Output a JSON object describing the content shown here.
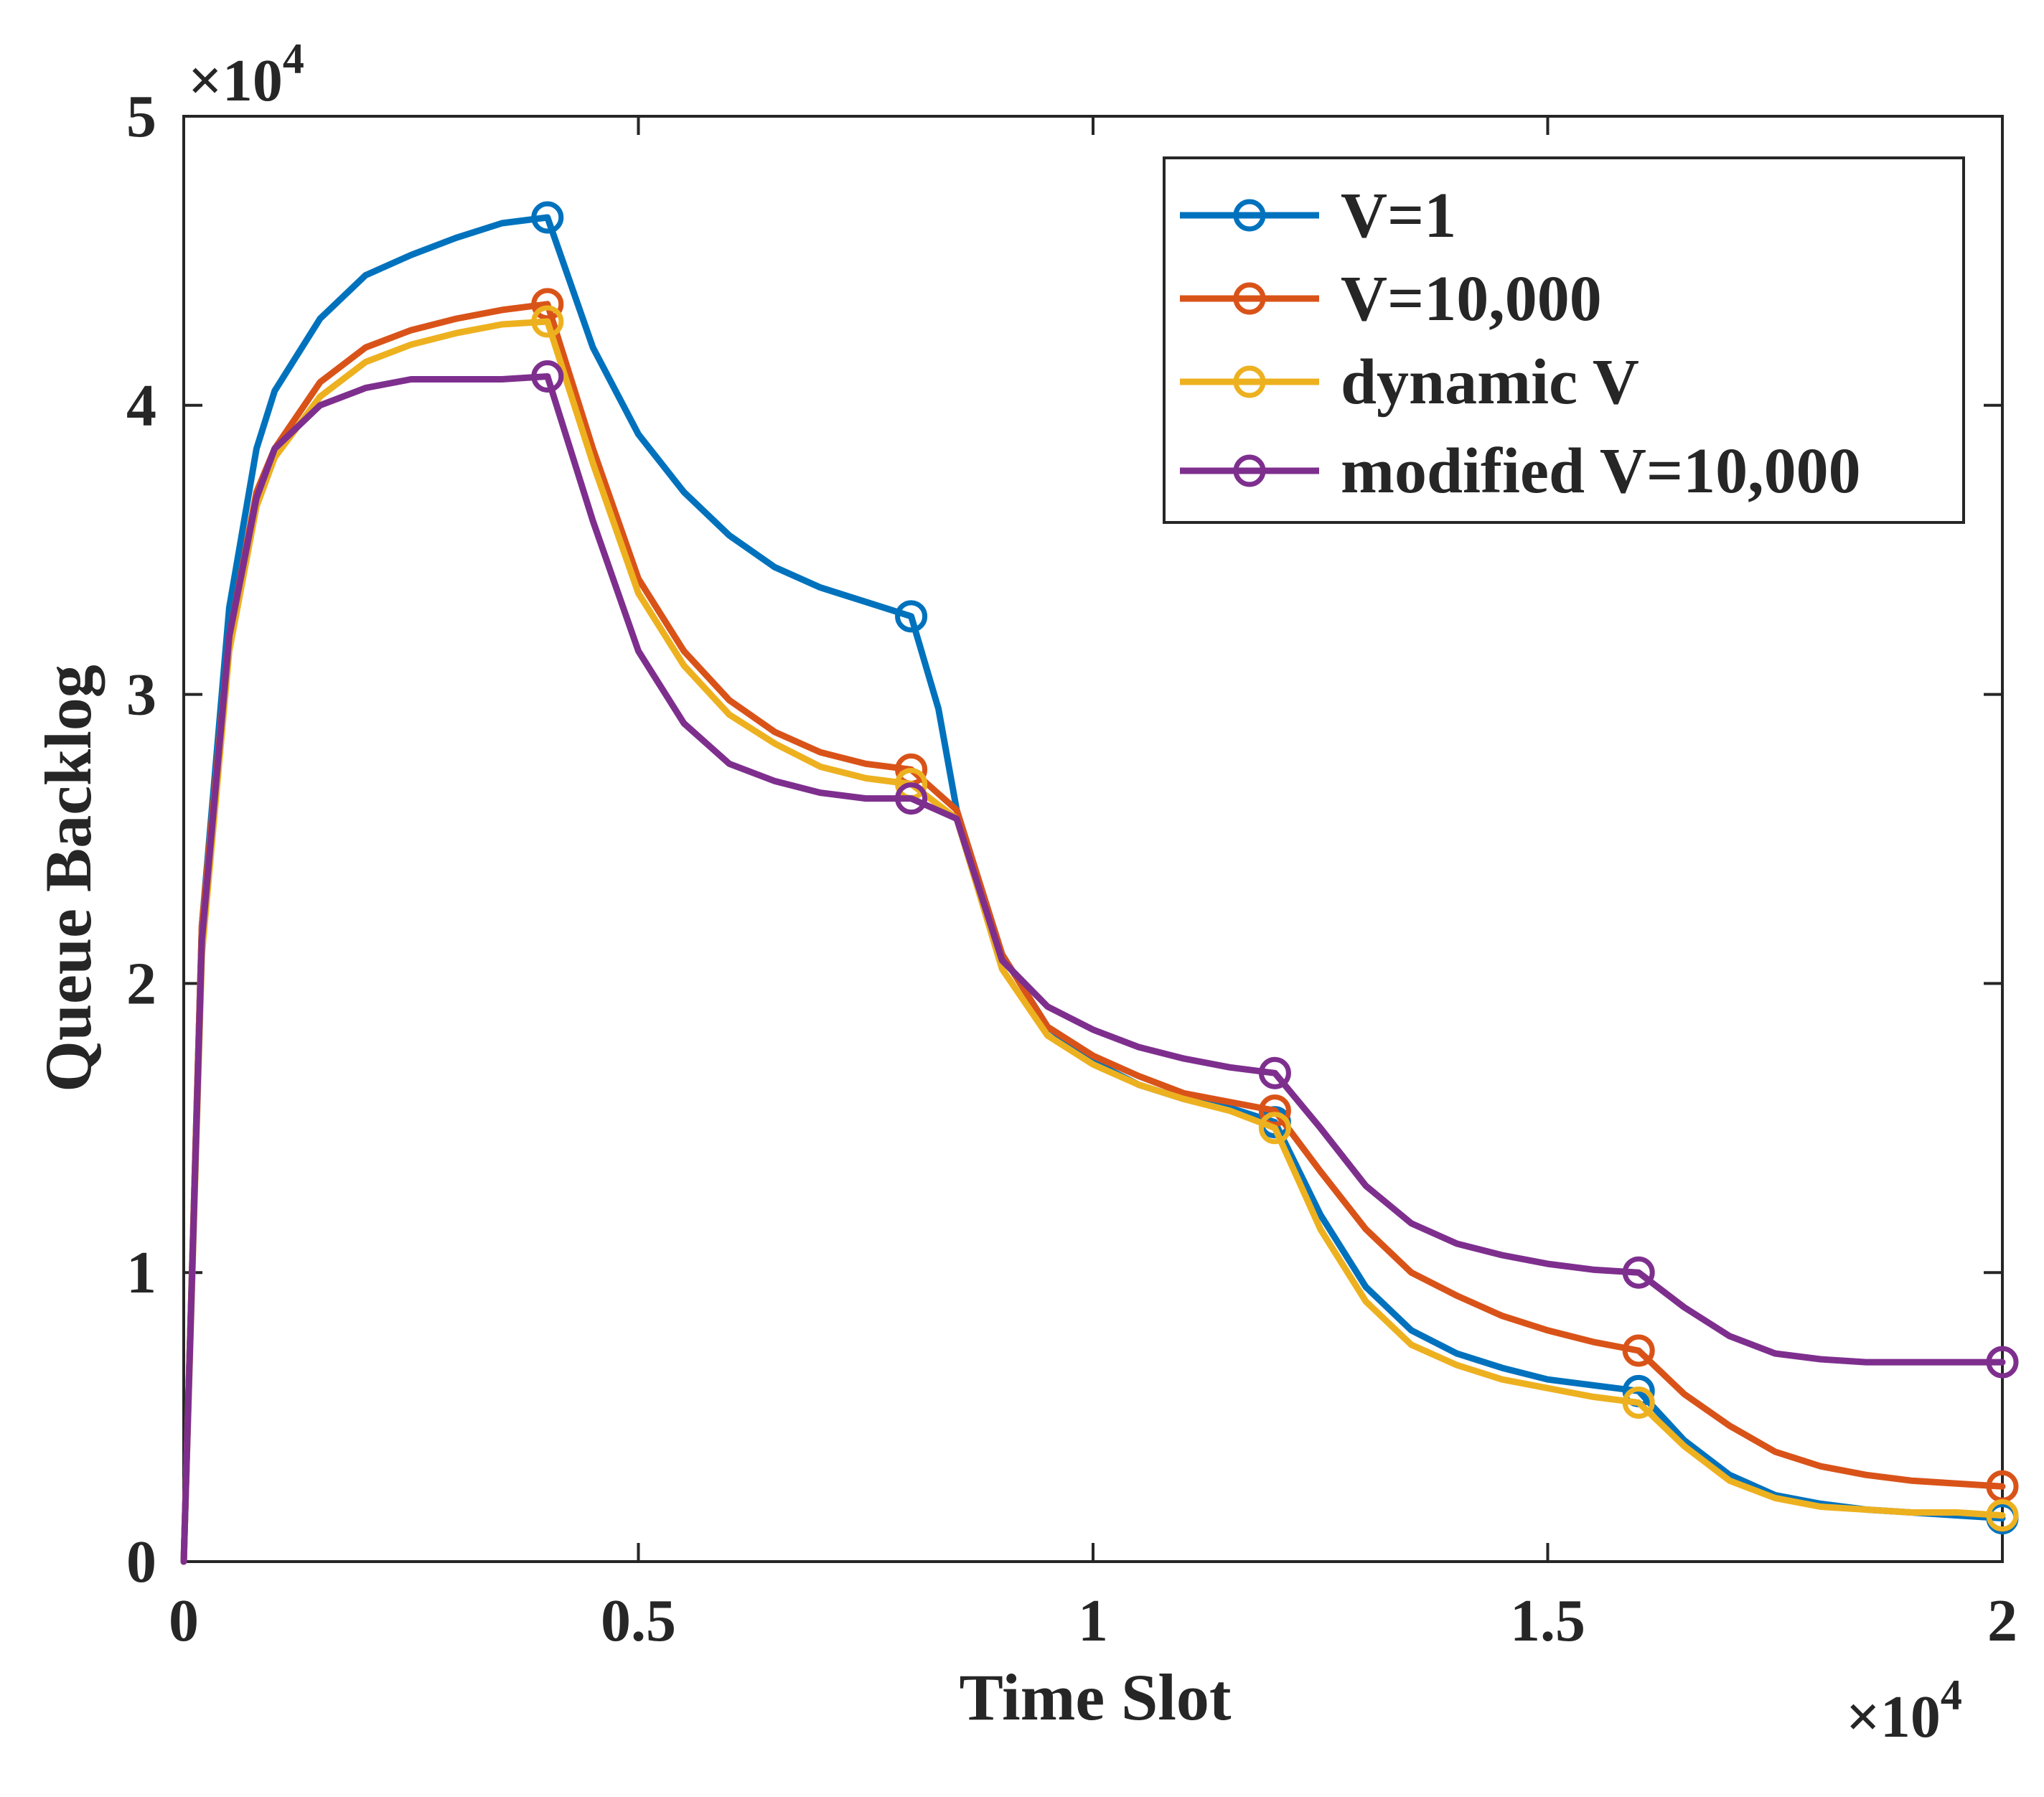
{
  "chart_data": {
    "type": "line",
    "title": "",
    "xlabel": "Time Slot",
    "ylabel": "Queue Backlog",
    "x_multiplier": "×10",
    "x_multiplier_exp": "4",
    "y_multiplier": "×10",
    "y_multiplier_exp": "4",
    "xlim": [
      0,
      2
    ],
    "ylim": [
      0,
      5
    ],
    "xticks": [
      0,
      0.5,
      1,
      1.5,
      2
    ],
    "xtick_labels": [
      "0",
      "0.5",
      "1",
      "1.5",
      "2"
    ],
    "yticks": [
      0,
      1,
      2,
      3,
      4,
      5
    ],
    "ytick_labels": [
      "0",
      "1",
      "2",
      "3",
      "4",
      "5"
    ],
    "grid": false,
    "legend_position": "top-right",
    "series": [
      {
        "name": "V=1",
        "color": "#0072bd",
        "x": [
          0,
          0.02,
          0.05,
          0.08,
          0.1,
          0.15,
          0.2,
          0.25,
          0.3,
          0.35,
          0.4,
          0.45,
          0.5,
          0.55,
          0.6,
          0.65,
          0.7,
          0.75,
          0.8,
          0.83,
          0.85,
          0.9,
          0.95,
          1.0,
          1.05,
          1.1,
          1.15,
          1.2,
          1.25,
          1.3,
          1.35,
          1.4,
          1.45,
          1.5,
          1.55,
          1.6,
          1.65,
          1.7,
          1.75,
          1.8,
          1.85,
          1.9,
          1.95,
          2.0
        ],
        "y": [
          0,
          2.2,
          3.3,
          3.85,
          4.05,
          4.3,
          4.45,
          4.52,
          4.58,
          4.63,
          4.65,
          4.2,
          3.9,
          3.7,
          3.55,
          3.44,
          3.37,
          3.32,
          3.27,
          2.95,
          2.6,
          2.1,
          1.85,
          1.73,
          1.65,
          1.6,
          1.57,
          1.52,
          1.2,
          0.95,
          0.8,
          0.72,
          0.67,
          0.63,
          0.61,
          0.59,
          0.42,
          0.3,
          0.23,
          0.2,
          0.18,
          0.17,
          0.16,
          0.15
        ],
        "marker_x": [
          0.4,
          0.8,
          1.2,
          1.6,
          2.0
        ],
        "marker_y": [
          4.65,
          3.27,
          1.52,
          0.59,
          0.15
        ]
      },
      {
        "name": "V=10,000",
        "color": "#d95319",
        "x": [
          0,
          0.02,
          0.05,
          0.08,
          0.1,
          0.15,
          0.2,
          0.25,
          0.3,
          0.35,
          0.4,
          0.45,
          0.5,
          0.55,
          0.6,
          0.65,
          0.7,
          0.75,
          0.8,
          0.85,
          0.9,
          0.95,
          1.0,
          1.05,
          1.1,
          1.15,
          1.2,
          1.25,
          1.3,
          1.35,
          1.4,
          1.45,
          1.5,
          1.55,
          1.6,
          1.65,
          1.7,
          1.75,
          1.8,
          1.85,
          1.9,
          1.95,
          2.0
        ],
        "y": [
          0,
          2.2,
          3.2,
          3.7,
          3.85,
          4.08,
          4.2,
          4.26,
          4.3,
          4.33,
          4.35,
          3.85,
          3.4,
          3.15,
          2.98,
          2.87,
          2.8,
          2.76,
          2.74,
          2.6,
          2.1,
          1.85,
          1.75,
          1.68,
          1.62,
          1.59,
          1.56,
          1.35,
          1.15,
          1.0,
          0.92,
          0.85,
          0.8,
          0.76,
          0.73,
          0.58,
          0.47,
          0.38,
          0.33,
          0.3,
          0.28,
          0.27,
          0.26
        ],
        "marker_x": [
          0.4,
          0.8,
          1.2,
          1.6,
          2.0
        ],
        "marker_y": [
          4.35,
          2.74,
          1.56,
          0.73,
          0.26
        ]
      },
      {
        "name": "dynamic V",
        "color": "#edb120",
        "x": [
          0,
          0.02,
          0.05,
          0.08,
          0.1,
          0.15,
          0.2,
          0.25,
          0.3,
          0.35,
          0.4,
          0.45,
          0.5,
          0.55,
          0.6,
          0.65,
          0.7,
          0.75,
          0.8,
          0.85,
          0.9,
          0.95,
          1.0,
          1.05,
          1.1,
          1.15,
          1.2,
          1.25,
          1.3,
          1.35,
          1.4,
          1.45,
          1.5,
          1.55,
          1.6,
          1.65,
          1.7,
          1.75,
          1.8,
          1.85,
          1.9,
          1.95,
          2.0
        ],
        "y": [
          0,
          2.1,
          3.15,
          3.65,
          3.82,
          4.03,
          4.15,
          4.21,
          4.25,
          4.28,
          4.29,
          3.8,
          3.35,
          3.1,
          2.93,
          2.83,
          2.75,
          2.71,
          2.69,
          2.57,
          2.05,
          1.82,
          1.72,
          1.65,
          1.6,
          1.56,
          1.5,
          1.15,
          0.9,
          0.75,
          0.68,
          0.63,
          0.6,
          0.57,
          0.55,
          0.4,
          0.28,
          0.22,
          0.19,
          0.18,
          0.17,
          0.17,
          0.16
        ],
        "marker_x": [
          0.4,
          0.8,
          1.2,
          1.6,
          2.0
        ],
        "marker_y": [
          4.29,
          2.69,
          1.5,
          0.55,
          0.16
        ]
      },
      {
        "name": "modified V=10,000",
        "color": "#7e2f8e",
        "x": [
          0,
          0.02,
          0.05,
          0.08,
          0.1,
          0.15,
          0.2,
          0.25,
          0.3,
          0.35,
          0.4,
          0.45,
          0.5,
          0.55,
          0.6,
          0.65,
          0.7,
          0.75,
          0.8,
          0.85,
          0.9,
          0.95,
          1.0,
          1.05,
          1.1,
          1.15,
          1.2,
          1.25,
          1.3,
          1.35,
          1.4,
          1.45,
          1.5,
          1.55,
          1.6,
          1.65,
          1.7,
          1.75,
          1.8,
          1.85,
          1.9,
          1.95,
          2.0
        ],
        "y": [
          0,
          2.15,
          3.2,
          3.68,
          3.85,
          4.0,
          4.06,
          4.09,
          4.09,
          4.09,
          4.1,
          3.6,
          3.15,
          2.9,
          2.76,
          2.7,
          2.66,
          2.64,
          2.64,
          2.57,
          2.08,
          1.92,
          1.84,
          1.78,
          1.74,
          1.71,
          1.69,
          1.5,
          1.3,
          1.17,
          1.1,
          1.06,
          1.03,
          1.01,
          1.0,
          0.88,
          0.78,
          0.72,
          0.7,
          0.69,
          0.69,
          0.69,
          0.69
        ],
        "marker_x": [
          0.4,
          0.8,
          1.2,
          1.6,
          2.0
        ],
        "marker_y": [
          4.1,
          2.64,
          1.69,
          1.0,
          0.69
        ]
      }
    ]
  }
}
